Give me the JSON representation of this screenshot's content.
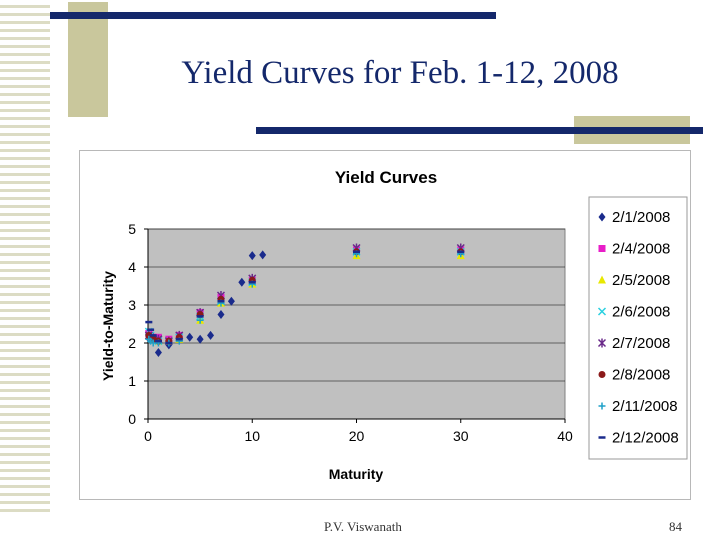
{
  "slide": {
    "title": "Yield Curves for Feb. 1-12, 2008",
    "author": "P.V. Viswanath",
    "page_number": "84",
    "colors": {
      "accent_bar": "#14286b",
      "tan": "#c9c79c"
    }
  },
  "chart_data": {
    "type": "scatter",
    "title": "Yield Curves",
    "xlabel": "Maturity",
    "ylabel": "Yield-to-Maturity",
    "xlim": [
      0,
      40
    ],
    "ylim": [
      0,
      5
    ],
    "xticks": [
      0,
      10,
      20,
      30,
      40
    ],
    "yticks": [
      0,
      1,
      2,
      3,
      4,
      5
    ],
    "plot_background": "#c0c0c0",
    "grid": true,
    "legend_position": "right",
    "series": [
      {
        "name": "2/1/2008",
        "marker": "diamond",
        "color": "#1a2b8c",
        "x": [
          0.08,
          0.25,
          0.5,
          1,
          2,
          3,
          4,
          5,
          6,
          7,
          8,
          9,
          10,
          11
        ],
        "y": [
          2.25,
          2.2,
          2.1,
          1.75,
          1.95,
          2.15,
          2.15,
          2.1,
          2.2,
          2.75,
          3.1,
          3.6,
          4.3,
          4.32
        ]
      },
      {
        "name": "2/4/2008",
        "marker": "square",
        "color": "#e81ec8",
        "x": [
          0.08,
          0.25,
          0.5,
          1,
          2,
          3,
          5,
          7,
          10,
          20,
          30
        ],
        "y": [
          2.25,
          2.2,
          2.15,
          2.15,
          2.1,
          2.2,
          2.8,
          3.2,
          3.65,
          4.45,
          4.45
        ]
      },
      {
        "name": "2/5/2008",
        "marker": "triangle",
        "color": "#e8e800",
        "x": [
          0.08,
          0.25,
          0.5,
          1,
          2,
          3,
          5,
          7,
          10,
          20,
          30
        ],
        "y": [
          2.2,
          2.15,
          2.1,
          2.05,
          2.05,
          2.1,
          2.6,
          3.05,
          3.55,
          4.3,
          4.3
        ]
      },
      {
        "name": "2/6/2008",
        "marker": "x",
        "color": "#2ad0e0",
        "x": [
          0.08,
          0.25,
          0.5,
          1,
          2,
          3,
          5,
          7,
          10,
          20,
          30
        ],
        "y": [
          2.3,
          2.2,
          2.1,
          2.05,
          2.05,
          2.15,
          2.7,
          3.1,
          3.6,
          4.4,
          4.4
        ]
      },
      {
        "name": "2/7/2008",
        "marker": "star",
        "color": "#6a2a8a",
        "x": [
          0.08,
          0.25,
          0.5,
          1,
          2,
          3,
          5,
          7,
          10,
          20,
          30
        ],
        "y": [
          2.2,
          2.15,
          2.1,
          2.1,
          2.05,
          2.2,
          2.8,
          3.25,
          3.7,
          4.5,
          4.5
        ]
      },
      {
        "name": "2/8/2008",
        "marker": "circle",
        "color": "#8b1a1a",
        "x": [
          0.08,
          0.25,
          0.5,
          1,
          2,
          3,
          5,
          7,
          10,
          20,
          30
        ],
        "y": [
          2.2,
          2.15,
          2.1,
          2.05,
          2.05,
          2.15,
          2.75,
          3.15,
          3.65,
          4.4,
          4.4
        ]
      },
      {
        "name": "2/11/2008",
        "marker": "plus",
        "color": "#1ea0c8",
        "x": [
          0.08,
          0.25,
          0.5,
          1,
          2,
          3,
          5,
          7,
          10,
          20,
          30
        ],
        "y": [
          2.1,
          2.05,
          2.0,
          2.0,
          2.0,
          2.05,
          2.6,
          3.05,
          3.55,
          4.35,
          4.35
        ]
      },
      {
        "name": "2/12/2008",
        "marker": "dash",
        "color": "#1a2b8c",
        "x": [
          0.08,
          0.25,
          0.5,
          1,
          2,
          3,
          5,
          7,
          10,
          20,
          30
        ],
        "y": [
          2.55,
          2.35,
          2.2,
          2.05,
          2.0,
          2.1,
          2.7,
          3.1,
          3.6,
          4.4,
          4.4
        ]
      }
    ]
  }
}
